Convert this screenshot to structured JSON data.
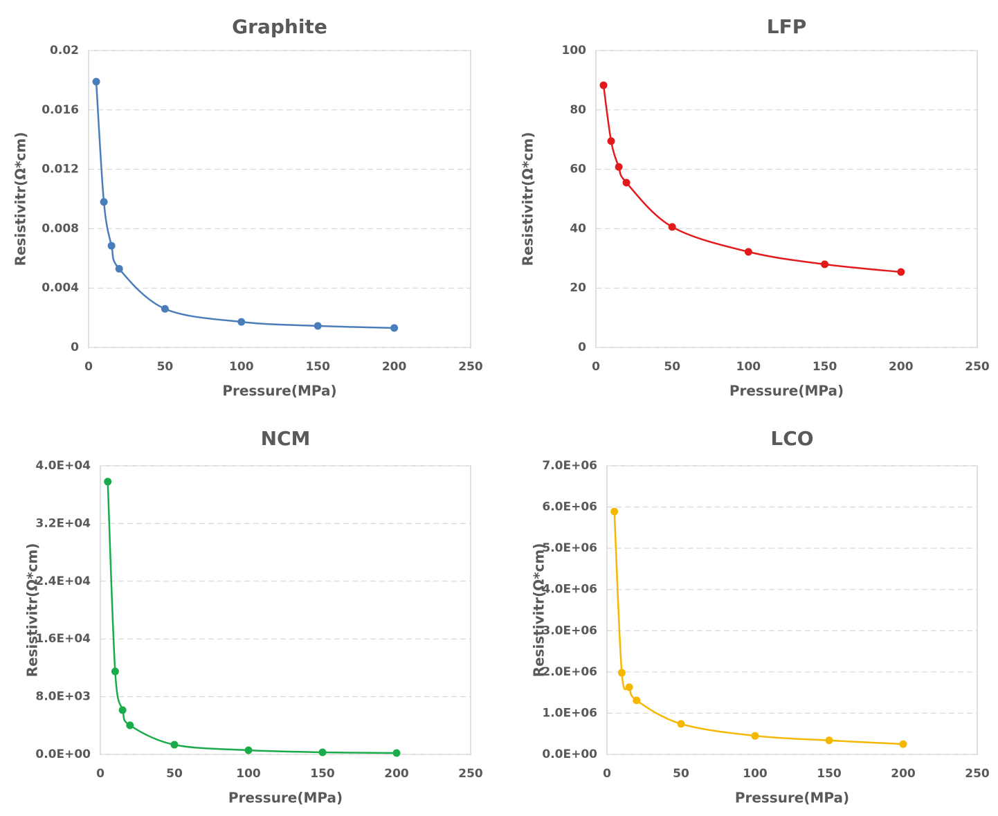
{
  "chart_data": [
    {
      "type": "line",
      "title": "Graphite",
      "x_label": "Pressure(MPa)",
      "y_label": "Resistivitr(Ω*cm)",
      "x": [
        5,
        10,
        15,
        20,
        50,
        100,
        150,
        200
      ],
      "values": [
        0.0179,
        0.0098,
        0.00685,
        0.0053,
        0.0026,
        0.00172,
        0.00145,
        0.00131
      ],
      "color": "#4a7ebb",
      "xlim": [
        0,
        250
      ],
      "xticks": [
        0,
        50,
        100,
        150,
        200,
        250
      ],
      "ylim": [
        0,
        0.02
      ],
      "yticks": [
        0,
        0.004,
        0.008,
        0.012,
        0.016,
        0.02
      ],
      "grid": true,
      "smooth": true
    },
    {
      "type": "line",
      "title": "LFP",
      "x_label": "Pressure(MPa)",
      "y_label": "Resistivitr(Ω*cm)",
      "x": [
        5,
        10,
        15,
        20,
        50,
        100,
        150,
        200
      ],
      "values": [
        88.3,
        69.5,
        60.8,
        55.5,
        40.6,
        32.2,
        28.0,
        25.4
      ],
      "color": "#e31a1c",
      "xlim": [
        0,
        250
      ],
      "xticks": [
        0,
        50,
        100,
        150,
        200,
        250
      ],
      "ylim": [
        0,
        100
      ],
      "yticks": [
        0,
        20,
        40,
        60,
        80,
        100
      ],
      "grid": true,
      "smooth": true
    },
    {
      "type": "line",
      "title": "NCM",
      "x_label": "Pressure(MPa)",
      "y_label": "Resistivitr(Ω*cm)",
      "x": [
        5,
        10,
        15,
        20,
        50,
        100,
        150,
        200
      ],
      "values": [
        37800,
        11500,
        6140,
        4030,
        1340,
        576,
        288,
        192
      ],
      "color": "#1aab4a",
      "xlim": [
        0,
        250
      ],
      "xticks": [
        0,
        50,
        100,
        150,
        200,
        250
      ],
      "ylim": [
        0,
        40000
      ],
      "yticks": [
        {
          "value": 0,
          "label": "0.0E+00"
        },
        {
          "value": 8000,
          "label": "8.0E+03"
        },
        {
          "value": 16000,
          "label": "1.6E+04"
        },
        {
          "value": 24000,
          "label": "2.4E+04"
        },
        {
          "value": 32000,
          "label": "3.2E+04"
        },
        {
          "value": 40000,
          "label": "4.0E+04"
        }
      ],
      "grid": true,
      "smooth": true
    },
    {
      "type": "line",
      "title": "LCO",
      "x_label": "Pressure(MPa)",
      "y_label": "Resistivitr(Ω*cm)",
      "x": [
        5,
        10,
        15,
        20,
        50,
        100,
        150,
        200
      ],
      "values": [
        5890000,
        1980000,
        1630000,
        1310000,
        740000,
        450000,
        340000,
        250000
      ],
      "color": "#f5b800",
      "xlim": [
        0,
        250
      ],
      "xticks": [
        0,
        50,
        100,
        150,
        200,
        250
      ],
      "ylim": [
        0,
        7000000
      ],
      "yticks": [
        {
          "value": 0,
          "label": "0.0E+00"
        },
        {
          "value": 1000000,
          "label": "1.0E+06"
        },
        {
          "value": 2000000,
          "label": "2.0E+06"
        },
        {
          "value": 3000000,
          "label": "3.0E+06"
        },
        {
          "value": 4000000,
          "label": "4.0E+06"
        },
        {
          "value": 5000000,
          "label": "5.0E+06"
        },
        {
          "value": 6000000,
          "label": "6.0E+06"
        },
        {
          "value": 7000000,
          "label": "7.0E+06"
        }
      ],
      "grid": true,
      "smooth": true
    }
  ]
}
